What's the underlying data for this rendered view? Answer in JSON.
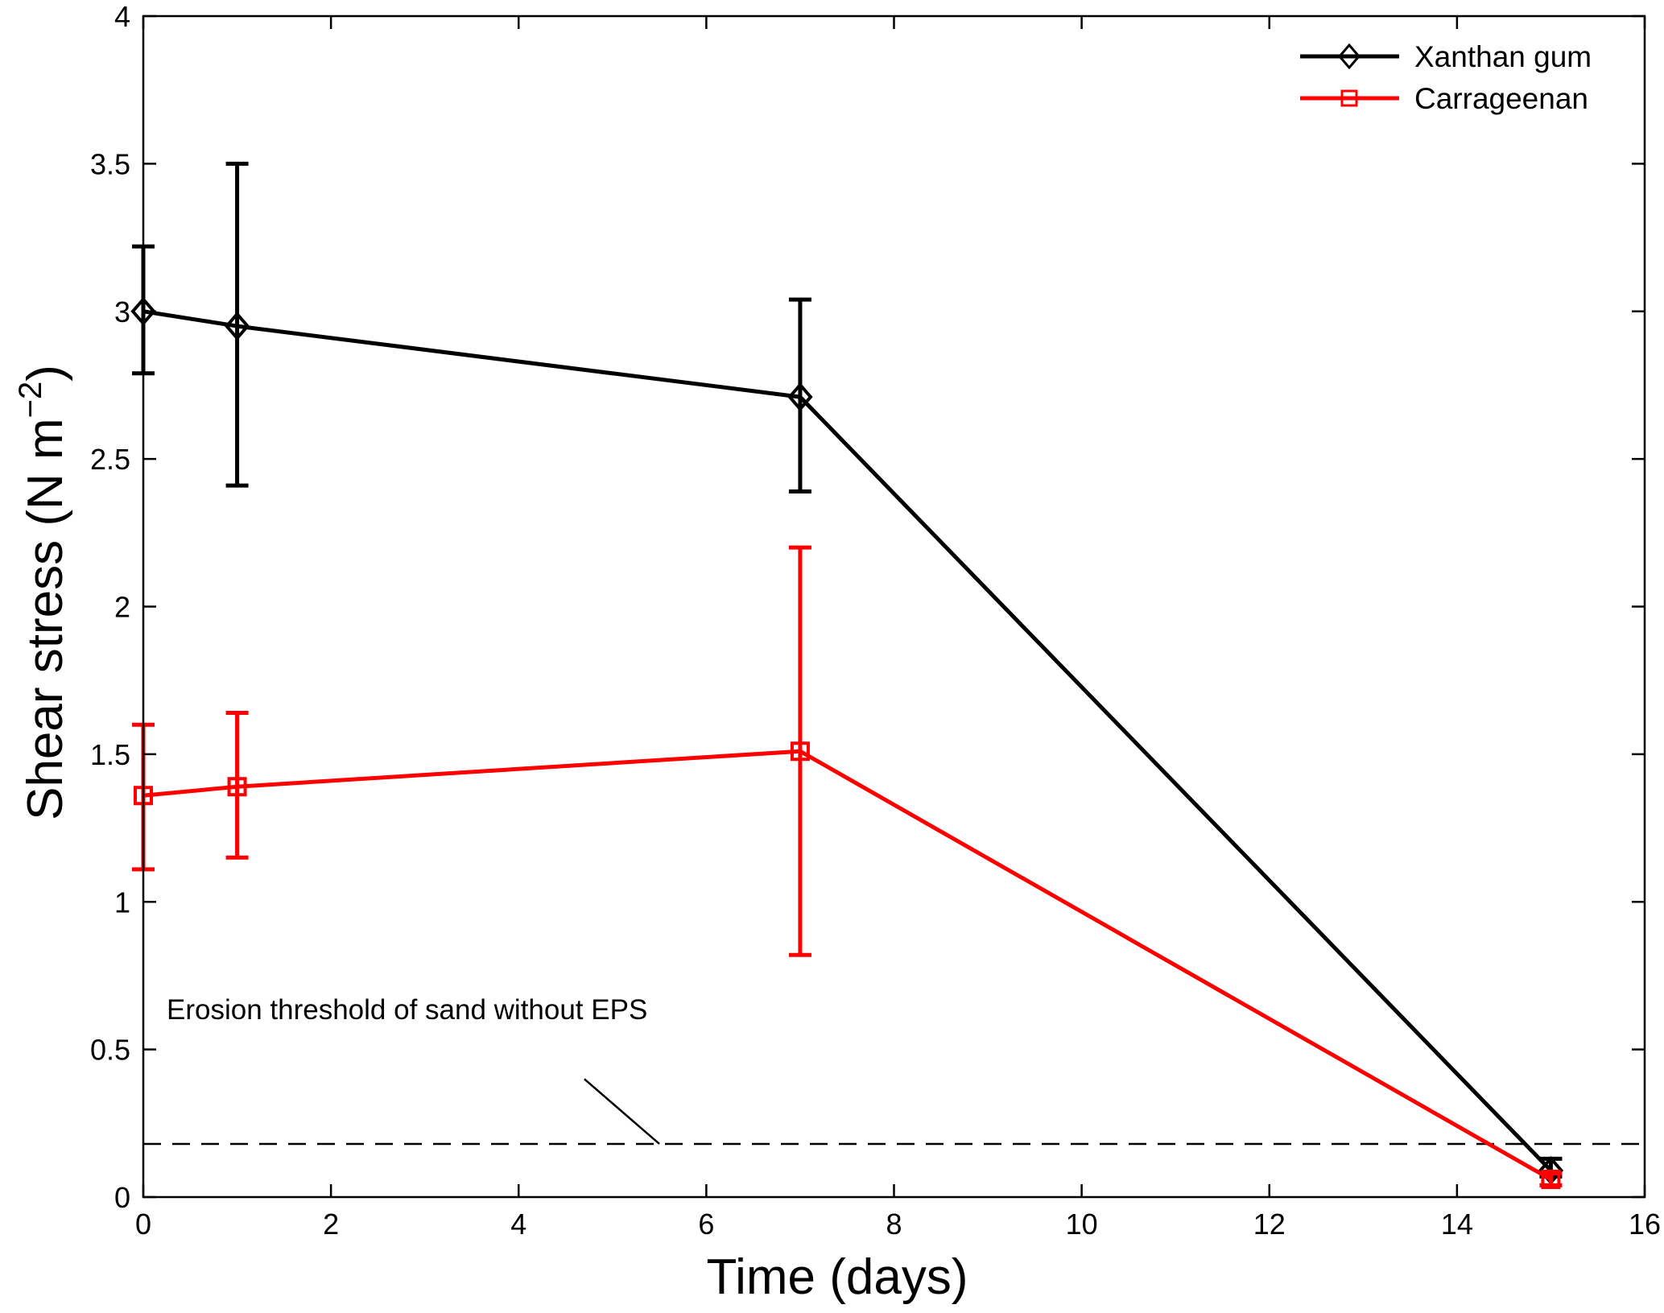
{
  "chart_data": {
    "type": "line",
    "title": "",
    "xlabel": "Time (days)",
    "ylabel_main": "Shear stress (N m",
    "ylabel_exponent": "−2",
    "ylabel_close": ")",
    "xlim": [
      0,
      16
    ],
    "ylim": [
      0,
      4
    ],
    "xticks": [
      0,
      2,
      4,
      6,
      8,
      10,
      12,
      14,
      16
    ],
    "yticks": [
      0,
      0.5,
      1,
      1.5,
      2,
      2.5,
      3,
      3.5,
      4
    ],
    "ytick_labels": [
      "0",
      "0.5",
      "1",
      "1.5",
      "2",
      "2.5",
      "3",
      "3.5",
      "4"
    ],
    "grid": false,
    "legend_position": "top-right",
    "series": [
      {
        "name": "Xanthan gum",
        "color": "#000000",
        "marker": "diamond",
        "x": [
          0,
          1,
          7,
          15
        ],
        "y": [
          3.0,
          2.95,
          2.71,
          0.09
        ],
        "err_low": [
          2.79,
          2.41,
          2.39,
          0.07
        ],
        "err_high": [
          3.22,
          3.5,
          3.04,
          0.13
        ]
      },
      {
        "name": "Carrageenan",
        "color": "#ff0000",
        "marker": "square",
        "x": [
          0,
          1,
          7,
          15
        ],
        "y": [
          1.36,
          1.39,
          1.51,
          0.06
        ],
        "err_low": [
          1.11,
          1.15,
          0.82,
          0.04
        ],
        "err_high": [
          1.6,
          1.64,
          2.2,
          0.08
        ]
      }
    ],
    "threshold": {
      "y": 0.18,
      "style": "dashed",
      "label": "Erosion threshold of sand without EPS",
      "pointer_from_x": 4.7,
      "pointer_from_y": 0.4,
      "pointer_to_x": 5.5,
      "pointer_to_y": 0.18
    }
  }
}
